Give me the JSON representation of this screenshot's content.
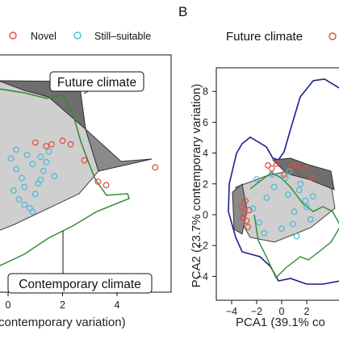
{
  "panel_letter": "B",
  "colors": {
    "novel": "#e0483a",
    "still_suitable": "#4bbad6",
    "future_hull": "#5b5b5b",
    "future_hull_light": "#cfcfcf",
    "contemporary": "#2e8b2e",
    "future_climate_outline": "#1b1f8a"
  },
  "legend_left": {
    "items": [
      {
        "label": "Novel",
        "color": "#e0483a"
      },
      {
        "label": "Still–suitable",
        "color": "#4bbad6"
      }
    ]
  },
  "legend_right": {
    "label": "Future climate"
  },
  "callouts": {
    "future": "Future climate",
    "contemporary": "Contemporary climate"
  },
  "chart_data": [
    {
      "type": "scatter",
      "panel": "left",
      "xlabel": "contemporary variation)",
      "x_ticks": [
        "0",
        "2",
        "4"
      ],
      "xlim": [
        -0.4,
        5.4
      ],
      "ylim": [
        -4.6,
        4.2
      ],
      "series": [
        {
          "name": "Novel",
          "x": [
            1.0,
            1.4,
            1.6,
            2.0,
            2.3,
            2.8,
            3.3,
            3.6,
            5.4
          ],
          "y": [
            1.7,
            1.5,
            1.6,
            1.8,
            1.6,
            0.7,
            -0.5,
            -0.7,
            0.3
          ]
        },
        {
          "name": "Still–suitable",
          "x": [
            0.1,
            0.3,
            0.5,
            0.7,
            0.9,
            1.1,
            1.3,
            1.5,
            1.7,
            0.2,
            0.4,
            0.6,
            0.8,
            1.0,
            1.2,
            1.4,
            0.3,
            0.6,
            0.9,
            1.2
          ],
          "y": [
            0.8,
            0.2,
            -0.3,
            1.0,
            0.5,
            -0.6,
            0.1,
            1.2,
            -0.2,
            -1.0,
            -1.5,
            -0.8,
            -2.0,
            -1.2,
            -0.4,
            0.6,
            1.3,
            -1.8,
            -2.2,
            0.9
          ]
        }
      ]
    },
    {
      "type": "scatter",
      "panel": "right",
      "xlabel": "PCA1 (39.1% co",
      "ylabel": "PCA2 (23.7% contemporary variation)",
      "x_ticks": [
        "−4",
        "−2",
        "0",
        "2"
      ],
      "y_ticks": [
        "8",
        "6",
        "4",
        "2",
        "0",
        "−2",
        "−4"
      ],
      "xlim": [
        -4.2,
        3.2
      ],
      "ylim": [
        -5,
        9
      ],
      "series": [
        {
          "name": "Novel",
          "x": [
            -3.2,
            -3.0,
            -2.8,
            -2.6,
            -2.9,
            -3.1,
            -2.7,
            -1.1,
            -0.8,
            -0.4,
            0.2,
            0.7,
            1.2,
            1.8,
            2.4
          ],
          "y": [
            0.5,
            0.1,
            -0.4,
            0.3,
            0.9,
            -0.2,
            -0.8,
            3.2,
            3.0,
            3.3,
            2.6,
            3.1,
            3.2,
            3.0,
            2.4
          ]
        },
        {
          "name": "Still–suitable",
          "x": [
            -2.3,
            -1.8,
            -1.2,
            -0.6,
            0.0,
            0.5,
            1.0,
            1.5,
            2.0,
            2.5,
            -2.0,
            -1.4,
            -0.8,
            0.3,
            0.9,
            1.4,
            1.9,
            2.3,
            0.6,
            1.2
          ],
          "y": [
            0.4,
            -0.5,
            1.1,
            1.8,
            -0.9,
            1.3,
            0.2,
            2.0,
            0.5,
            1.2,
            2.3,
            -1.2,
            2.6,
            2.4,
            -0.6,
            1.6,
            0.9,
            -0.3,
            2.8,
            -1.4
          ]
        }
      ]
    }
  ]
}
